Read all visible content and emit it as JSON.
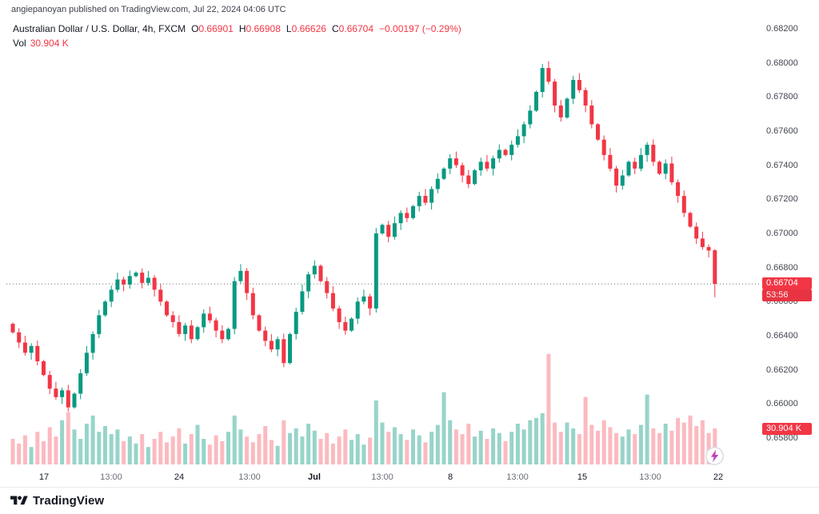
{
  "header": {
    "attribution": "angiepanoyan published on TradingView.com, Jul 22, 2024 04:06 UTC"
  },
  "legend": {
    "symbol_title": "Australian Dollar / U.S. Dollar, 4h, FXCM",
    "ohlc": [
      {
        "label": "O",
        "value": "0.66901"
      },
      {
        "label": "H",
        "value": "0.66908"
      },
      {
        "label": "L",
        "value": "0.66626"
      },
      {
        "label": "C",
        "value": "0.66704"
      }
    ],
    "change": "−0.00197 (−0.29%)",
    "vol_label": "Vol",
    "vol_value": "30.904 K"
  },
  "price_label": {
    "value": "0.66704",
    "countdown": "53:56"
  },
  "volume_label": {
    "value": "30.904 K"
  },
  "footer": {
    "brand": "TradingView"
  },
  "colors": {
    "up": "#089981",
    "down": "#f23645",
    "vol_up": "#089981",
    "vol_down": "#f23645",
    "badge": "#f23645",
    "dotted_line": "#6a6e78"
  },
  "chart_data": {
    "type": "candlestick+volume",
    "title": "Australian Dollar / U.S. Dollar",
    "symbol": "AUD/USD",
    "interval": "4h",
    "exchange": "FXCM",
    "price_axis_ticks": [
      "0.68200",
      "0.68000",
      "0.67800",
      "0.67600",
      "0.67400",
      "0.67200",
      "0.67000",
      "0.66800",
      "0.66600",
      "0.66400",
      "0.66200",
      "0.66000",
      "0.65800"
    ],
    "time_axis_ticks": [
      {
        "label": "17",
        "index": 5,
        "type": "day"
      },
      {
        "label": "13:00",
        "index": 16,
        "type": "time"
      },
      {
        "label": "24",
        "index": 27,
        "type": "day"
      },
      {
        "label": "13:00",
        "index": 38.5,
        "type": "time"
      },
      {
        "label": "Jul",
        "index": 49,
        "type": "month"
      },
      {
        "label": "13:00",
        "index": 60,
        "type": "time"
      },
      {
        "label": "8",
        "index": 71,
        "type": "day"
      },
      {
        "label": "13:00",
        "index": 82,
        "type": "time"
      },
      {
        "label": "15",
        "index": 92.5,
        "type": "day"
      },
      {
        "label": "13:00",
        "index": 103.5,
        "type": "time"
      },
      {
        "label": "22",
        "index": 114.5,
        "type": "day"
      }
    ],
    "price_range": [
      0.658,
      0.682
    ],
    "first_open": 0.6647,
    "closes": [
      0.6642,
      0.6636,
      0.663,
      0.6634,
      0.6625,
      0.6617,
      0.6609,
      0.6604,
      0.6608,
      0.6598,
      0.6606,
      0.6618,
      0.663,
      0.6641,
      0.6652,
      0.666,
      0.6667,
      0.6673,
      0.667,
      0.6675,
      0.6677,
      0.6671,
      0.6674,
      0.6667,
      0.666,
      0.6652,
      0.6648,
      0.6641,
      0.6646,
      0.6638,
      0.6645,
      0.6653,
      0.6649,
      0.6643,
      0.6638,
      0.6644,
      0.6672,
      0.6678,
      0.6665,
      0.6652,
      0.6643,
      0.6637,
      0.6632,
      0.6638,
      0.6624,
      0.6641,
      0.6654,
      0.6666,
      0.6676,
      0.6681,
      0.6672,
      0.6665,
      0.6656,
      0.6648,
      0.6643,
      0.665,
      0.666,
      0.6663,
      0.6656,
      0.67,
      0.6705,
      0.6698,
      0.6706,
      0.6712,
      0.6709,
      0.6716,
      0.6722,
      0.6718,
      0.6726,
      0.6732,
      0.6738,
      0.6744,
      0.674,
      0.6734,
      0.6729,
      0.6737,
      0.6742,
      0.6738,
      0.6744,
      0.6749,
      0.6746,
      0.6752,
      0.6757,
      0.6764,
      0.6772,
      0.6783,
      0.6797,
      0.6789,
      0.6775,
      0.6768,
      0.6779,
      0.679,
      0.6784,
      0.6775,
      0.6764,
      0.6755,
      0.6746,
      0.6738,
      0.6728,
      0.6734,
      0.6742,
      0.6738,
      0.6746,
      0.6752,
      0.6742,
      0.6735,
      0.6741,
      0.673,
      0.6722,
      0.6712,
      0.6704,
      0.6697,
      0.6692,
      0.669,
      0.66704
    ],
    "volumes_k": [
      22,
      18,
      25,
      15,
      28,
      20,
      32,
      24,
      38,
      45,
      30,
      22,
      35,
      42,
      28,
      33,
      26,
      30,
      20,
      24,
      18,
      26,
      15,
      22,
      28,
      19,
      24,
      31,
      18,
      26,
      34,
      22,
      17,
      25,
      20,
      28,
      42,
      30,
      24,
      19,
      26,
      33,
      21,
      16,
      38,
      27,
      31,
      24,
      35,
      29,
      22,
      27,
      18,
      24,
      30,
      21,
      26,
      17,
      23,
      55,
      36,
      28,
      32,
      26,
      21,
      30,
      25,
      19,
      28,
      34,
      62,
      38,
      30,
      26,
      35,
      24,
      29,
      22,
      31,
      27,
      20,
      28,
      35,
      30,
      38,
      40,
      44,
      95,
      36,
      28,
      36,
      31,
      26,
      58,
      34,
      29,
      38,
      32,
      27,
      24,
      30,
      26,
      34,
      60,
      31,
      27,
      35,
      29,
      40,
      36,
      42,
      33,
      38,
      27,
      30.904
    ],
    "last_candle": {
      "o": 0.66901,
      "h": 0.66908,
      "l": 0.66626,
      "c": 0.66704
    },
    "current_price": 0.66704,
    "current_volume_k": 30.904
  }
}
